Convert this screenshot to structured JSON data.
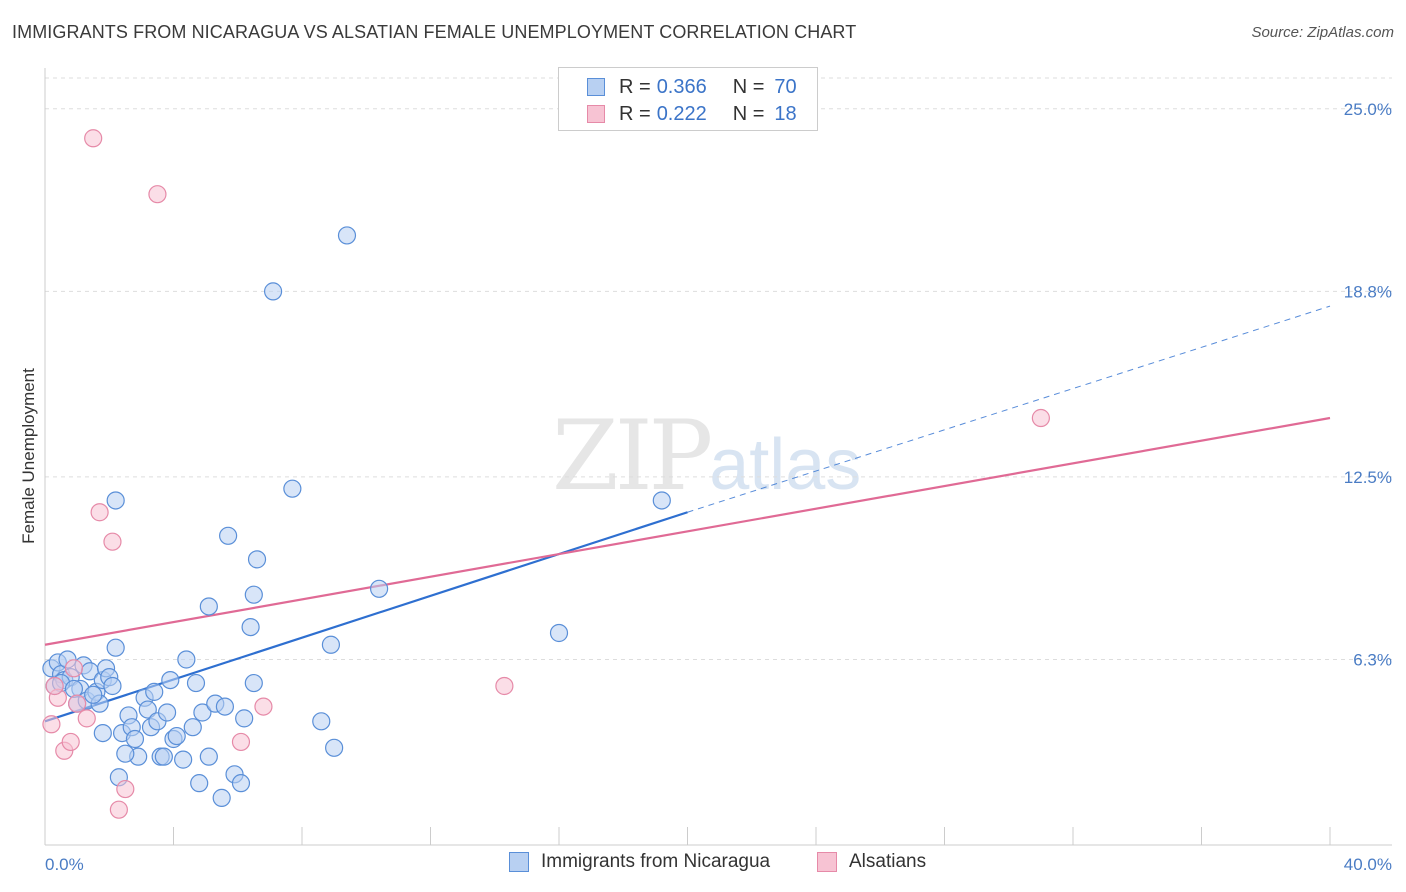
{
  "title": "IMMIGRANTS FROM NICARAGUA VS ALSATIAN FEMALE UNEMPLOYMENT CORRELATION CHART",
  "source": "Source: ZipAtlas.com",
  "watermark": {
    "zip": "ZIP",
    "atlas": "atlas"
  },
  "legend_top": [
    {
      "key": "R = ",
      "r": "0.366",
      "nkey": "N = ",
      "n": "70"
    },
    {
      "key": "R = ",
      "r": "0.222",
      "nkey": "N = ",
      "n": "18"
    }
  ],
  "legend_bottom": [
    "Immigrants from Nicaragua",
    "Alsatians"
  ],
  "colors": {
    "blue_fill": "#b8d0f2",
    "blue_stroke": "#5a8fd8",
    "blue_line": "#2e6fd0",
    "pink_fill": "#f7c3d3",
    "pink_stroke": "#e68aa8",
    "pink_line": "#e06a95",
    "grid": "#dddddd",
    "tick_text": "#4a7cc4"
  },
  "chart_data": {
    "type": "scatter",
    "title": "IMMIGRANTS FROM NICARAGUA VS ALSATIAN FEMALE UNEMPLOYMENT CORRELATION CHART",
    "xlabel": "",
    "ylabel": "Female Unemployment",
    "xlim": [
      0,
      40
    ],
    "ylim": [
      0,
      26.25
    ],
    "x_tick_labels": [
      "0.0%",
      "40.0%"
    ],
    "y_ticks": [
      6.3,
      12.5,
      18.8,
      25.0
    ],
    "y_tick_labels": [
      "6.3%",
      "12.5%",
      "18.8%",
      "25.0%"
    ],
    "series": [
      {
        "name": "Immigrants from Nicaragua",
        "r": 0.366,
        "n": 70,
        "trend": {
          "x": [
            0,
            20
          ],
          "y": [
            4.2,
            11.3
          ],
          "dashed_to": [
            40,
            18.3
          ]
        },
        "points": [
          [
            0.2,
            6.0
          ],
          [
            0.3,
            5.4
          ],
          [
            0.4,
            6.2
          ],
          [
            0.5,
            5.8
          ],
          [
            0.6,
            5.6
          ],
          [
            0.7,
            6.3
          ],
          [
            0.8,
            5.7
          ],
          [
            1.0,
            4.8
          ],
          [
            1.1,
            5.3
          ],
          [
            1.2,
            6.1
          ],
          [
            1.3,
            4.9
          ],
          [
            1.4,
            5.9
          ],
          [
            1.6,
            5.2
          ],
          [
            1.8,
            5.6
          ],
          [
            1.7,
            4.8
          ],
          [
            1.8,
            3.8
          ],
          [
            1.9,
            6.0
          ],
          [
            2.0,
            5.7
          ],
          [
            2.1,
            5.4
          ],
          [
            2.2,
            6.7
          ],
          [
            2.3,
            2.3
          ],
          [
            2.4,
            3.8
          ],
          [
            2.6,
            4.4
          ],
          [
            2.7,
            4.0
          ],
          [
            2.8,
            3.6
          ],
          [
            2.9,
            3.0
          ],
          [
            3.1,
            5.0
          ],
          [
            3.2,
            4.6
          ],
          [
            3.3,
            4.0
          ],
          [
            3.4,
            5.2
          ],
          [
            3.5,
            4.2
          ],
          [
            3.6,
            3.0
          ],
          [
            3.7,
            3.0
          ],
          [
            3.9,
            5.6
          ],
          [
            4.0,
            3.6
          ],
          [
            4.1,
            3.7
          ],
          [
            4.3,
            2.9
          ],
          [
            4.4,
            6.3
          ],
          [
            4.6,
            4.0
          ],
          [
            4.7,
            5.5
          ],
          [
            4.8,
            2.1
          ],
          [
            4.9,
            4.5
          ],
          [
            5.1,
            3.0
          ],
          [
            5.1,
            8.1
          ],
          [
            5.3,
            4.8
          ],
          [
            5.5,
            1.6
          ],
          [
            5.6,
            4.7
          ],
          [
            5.7,
            10.5
          ],
          [
            5.9,
            2.4
          ],
          [
            6.1,
            2.1
          ],
          [
            6.2,
            4.3
          ],
          [
            6.4,
            7.4
          ],
          [
            6.5,
            8.5
          ],
          [
            6.5,
            5.5
          ],
          [
            6.6,
            9.7
          ],
          [
            7.1,
            18.8
          ],
          [
            7.7,
            12.1
          ],
          [
            8.6,
            4.2
          ],
          [
            8.9,
            6.8
          ],
          [
            9.0,
            3.3
          ],
          [
            9.4,
            20.7
          ],
          [
            10.4,
            8.7
          ],
          [
            16.0,
            7.2
          ],
          [
            19.2,
            11.7
          ],
          [
            2.2,
            11.7
          ],
          [
            0.5,
            5.5
          ],
          [
            1.5,
            5.1
          ],
          [
            0.9,
            5.3
          ],
          [
            2.5,
            3.1
          ],
          [
            3.8,
            4.5
          ]
        ]
      },
      {
        "name": "Alsatians",
        "r": 0.222,
        "n": 18,
        "trend": {
          "x": [
            0,
            40
          ],
          "y": [
            6.8,
            14.5
          ]
        },
        "points": [
          [
            1.5,
            24.0
          ],
          [
            3.5,
            22.1
          ],
          [
            1.7,
            11.3
          ],
          [
            2.1,
            10.3
          ],
          [
            0.2,
            4.1
          ],
          [
            0.4,
            5.0
          ],
          [
            0.6,
            3.2
          ],
          [
            0.8,
            3.5
          ],
          [
            0.9,
            6.0
          ],
          [
            1.3,
            4.3
          ],
          [
            2.3,
            1.2
          ],
          [
            2.5,
            1.9
          ],
          [
            6.1,
            3.5
          ],
          [
            6.8,
            4.7
          ],
          [
            14.3,
            5.4
          ],
          [
            31.0,
            14.5
          ],
          [
            0.3,
            5.4
          ],
          [
            1.0,
            4.8
          ]
        ]
      }
    ]
  }
}
